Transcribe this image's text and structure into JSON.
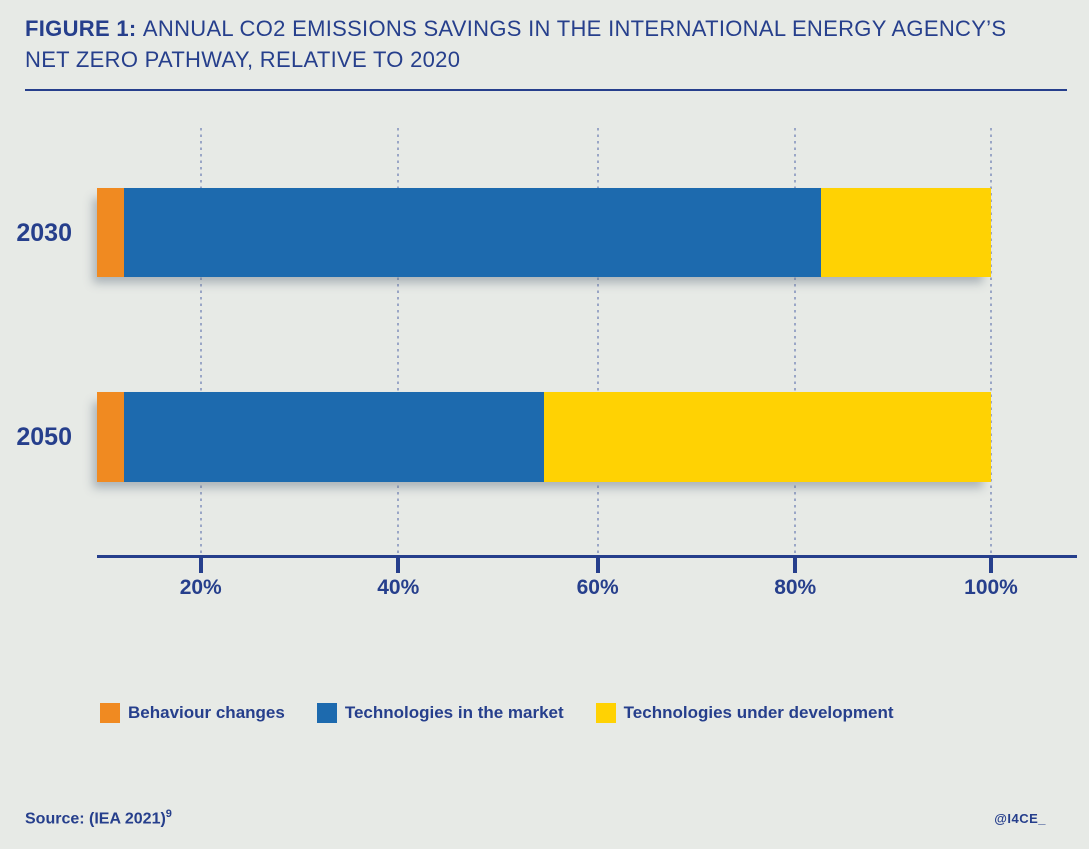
{
  "header": {
    "figure_label": "FIGURE 1: ",
    "title_line1_rest": "ANNUAL CO2 EMISSIONS SAVINGS IN THE INTERNATIONAL ENERGY AGENCY’S",
    "title_line2": "NET ZERO PATHWAY, RELATIVE TO 2020"
  },
  "chart_data": {
    "type": "bar",
    "orientation": "horizontal",
    "stacked": true,
    "title": "Annual CO2 emissions savings in the International Energy Agency’s net zero pathway, relative to 2020",
    "unit": "%",
    "categories": [
      "2030",
      "2050"
    ],
    "series": [
      {
        "name": "Behaviour changes",
        "color": "#f08a21",
        "values": [
          3,
          3
        ]
      },
      {
        "name": "Technologies in the market",
        "color": "#1d6aae",
        "values": [
          78,
          47
        ]
      },
      {
        "name": "Technologies under development",
        "color": "#ffd203",
        "values": [
          19,
          50
        ]
      }
    ],
    "xlim": [
      0,
      100
    ],
    "x_ticks": [
      {
        "label": "20%",
        "offset_pct": 11.6
      },
      {
        "label": "40%",
        "offset_pct": 33.7
      },
      {
        "label": "60%",
        "offset_pct": 56.0
      },
      {
        "label": "80%",
        "offset_pct": 78.1
      },
      {
        "label": "100%",
        "offset_pct": 100
      }
    ],
    "grid": "dotted-vertical",
    "legend_position": "bottom"
  },
  "footer": {
    "source_text": "Source: (IEA 2021)",
    "source_note_ref": "9",
    "handle": "@I4CE_"
  },
  "colors": {
    "background": "#e7eae6",
    "navy": "#263f8c",
    "orange": "#f08a21",
    "blue": "#1d6aae",
    "yellow": "#ffd203",
    "gridline": "#9aa6c6"
  }
}
